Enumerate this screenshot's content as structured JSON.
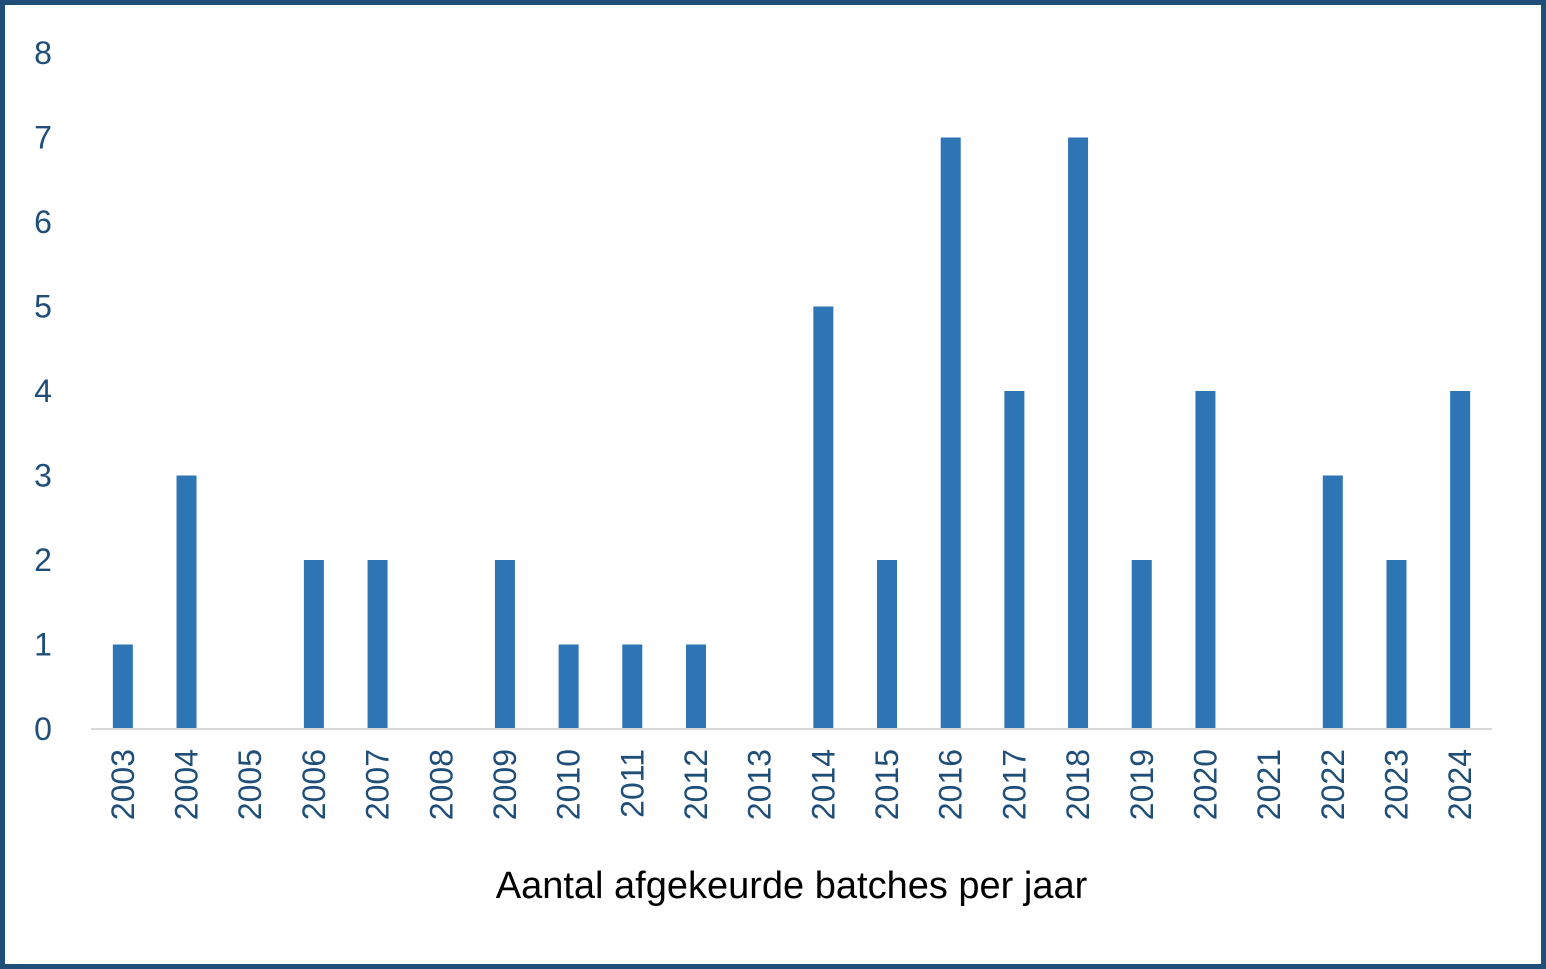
{
  "chart_data": {
    "type": "bar",
    "categories": [
      "2003",
      "2004",
      "2005",
      "2006",
      "2007",
      "2008",
      "2009",
      "2010",
      "2011",
      "2012",
      "2013",
      "2014",
      "2015",
      "2016",
      "2017",
      "2018",
      "2019",
      "2020",
      "2021",
      "2022",
      "2023",
      "2024"
    ],
    "values": [
      1,
      3,
      0,
      2,
      2,
      0,
      2,
      1,
      1,
      1,
      0,
      5,
      2,
      7,
      4,
      7,
      2,
      4,
      0,
      3,
      2,
      4
    ],
    "title": "",
    "xlabel": "Aantal afgekeurde batches per jaar",
    "ylabel": "",
    "ylim": [
      0,
      8
    ],
    "yticks": [
      "0",
      "1",
      "2",
      "3",
      "4",
      "5",
      "6",
      "7",
      "8"
    ],
    "grid": false,
    "legend": "none",
    "colors": {
      "bar": "#2e75b6",
      "tick_text": "#1f4e79",
      "frame": "#1f4e79",
      "axis_line": "#d9d9d9"
    }
  }
}
